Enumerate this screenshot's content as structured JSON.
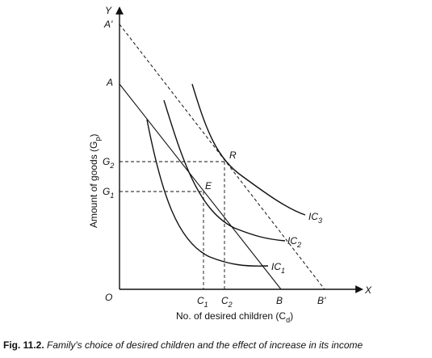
{
  "axes": {
    "y_symbol": "Y",
    "x_symbol": "X",
    "origin": "O",
    "y_label": "Amount of goods (G",
    "y_label_sub": "p",
    "y_label_end": ")",
    "x_label": "No. of desired children (C",
    "x_label_sub": "d",
    "x_label_end": ")"
  },
  "budget_lines": [
    {
      "start_label": "A",
      "end_label": "B",
      "style": "solid"
    },
    {
      "start_label": "A'",
      "end_label": "B'",
      "style": "dashed"
    }
  ],
  "indifference_curves": [
    {
      "label": "IC",
      "sub": "1"
    },
    {
      "label": "IC",
      "sub": "2"
    },
    {
      "label": "IC",
      "sub": "3"
    }
  ],
  "points": [
    {
      "label": "E",
      "goods_label": "G",
      "goods_sub": "1",
      "children_label": "C",
      "children_sub": "1"
    },
    {
      "label": "R",
      "goods_label": "G",
      "goods_sub": "2",
      "children_label": "C",
      "children_sub": "2"
    }
  ],
  "caption": {
    "number": "Fig. 11.2.",
    "text": "Family's choice of desired children and the effect of increase in its income"
  }
}
